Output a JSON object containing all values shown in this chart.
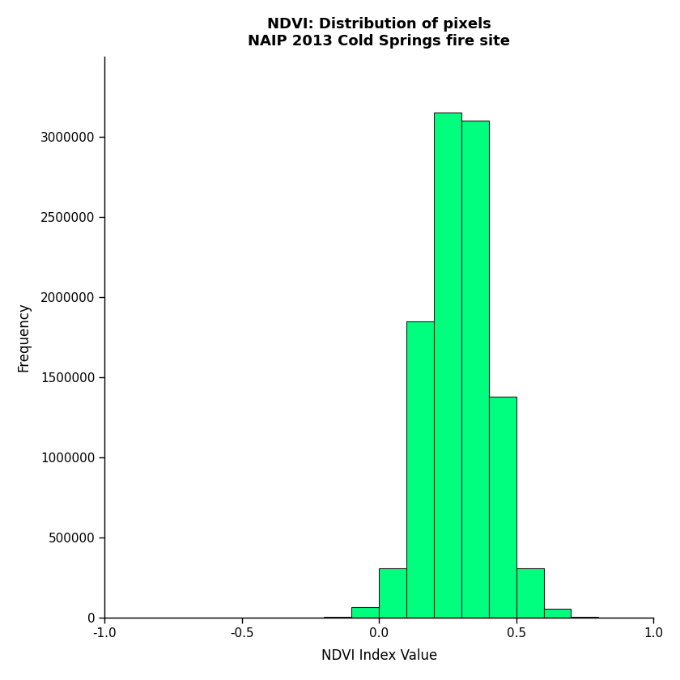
{
  "title_line1": "NDVI: Distribution of pixels",
  "title_line2": "NAIP 2013 Cold Springs fire site",
  "xlabel": "NDVI Index Value",
  "ylabel": "Frequency",
  "bar_color": "#00FF7F",
  "bar_edge_color": "#1a1a1a",
  "xlim": [
    -1.0,
    1.0
  ],
  "ylim": [
    0,
    3500000
  ],
  "xticks": [
    -1.0,
    -0.5,
    0.0,
    0.5,
    1.0
  ],
  "yticks": [
    0,
    500000,
    1000000,
    1500000,
    2000000,
    2500000,
    3000000
  ],
  "bin_edges": [
    -1.0,
    -0.9,
    -0.8,
    -0.7,
    -0.6,
    -0.5,
    -0.4,
    -0.3,
    -0.2,
    -0.1,
    0.0,
    0.1,
    0.2,
    0.3,
    0.4,
    0.5,
    0.6,
    0.7,
    0.8,
    0.9,
    1.0
  ],
  "bin_counts": [
    0,
    0,
    0,
    0,
    0,
    0,
    0,
    500,
    8000,
    65000,
    310000,
    1850000,
    3150000,
    3100000,
    1380000,
    310000,
    55000,
    8000,
    500,
    0
  ]
}
